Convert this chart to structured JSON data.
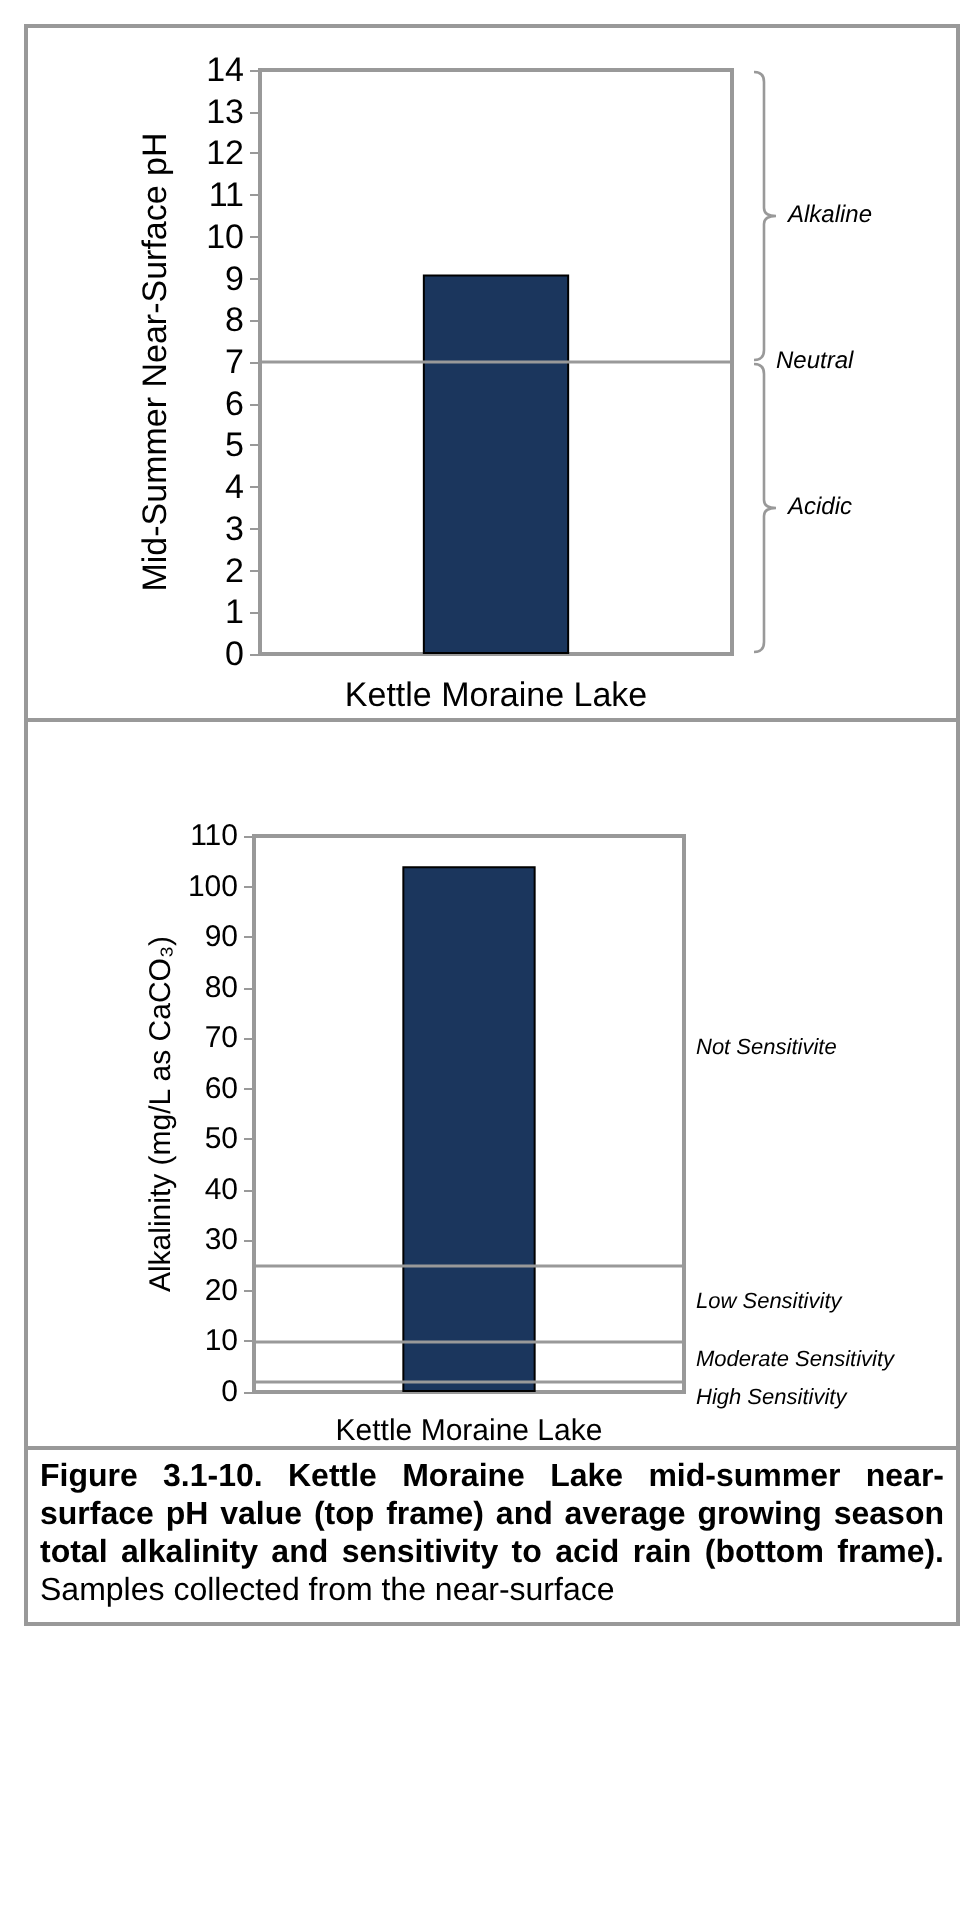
{
  "chart_data": [
    {
      "type": "bar",
      "ylabel": "Mid-Summer Near-Surface pH",
      "categories": [
        "Kettle Moraine Lake"
      ],
      "values": [
        9.1
      ],
      "color": "#1b365d",
      "ylim": [
        0,
        14
      ],
      "yticks": [
        0,
        1,
        2,
        3,
        4,
        5,
        6,
        7,
        8,
        9,
        10,
        11,
        12,
        13,
        14
      ],
      "grid": false,
      "ref_lines": [
        {
          "axis": "y",
          "value": 7,
          "label": "Neutral"
        }
      ],
      "annotations": [
        "Alkaline",
        "Acidic"
      ]
    },
    {
      "type": "bar",
      "title": "Figure 3.1-10.  Kettle Moraine Lake mid-summer near-surface pH value (top frame) and average growing season total alkalinity and sensitivity to acid rain (bottom frame).",
      "ylabel": "Alkalinity (mg/L as CaCO₃)",
      "categories": [
        "Kettle Moraine Lake"
      ],
      "values": [
        104
      ],
      "color": "#1b365d",
      "ylim": [
        0,
        110
      ],
      "yticks": [
        0,
        10,
        20,
        30,
        40,
        50,
        60,
        70,
        80,
        90,
        100,
        110
      ],
      "grid": false,
      "ref_lines": [
        {
          "axis": "y",
          "value": 25
        },
        {
          "axis": "y",
          "value": 10
        },
        {
          "axis": "y",
          "value": 2
        }
      ],
      "annotations": [
        "Not Sensitivite",
        "Low Sensitivity",
        "Moderate Sensitivity",
        "High Sensitivity",
        "Samples collected from the near-surface"
      ]
    }
  ]
}
